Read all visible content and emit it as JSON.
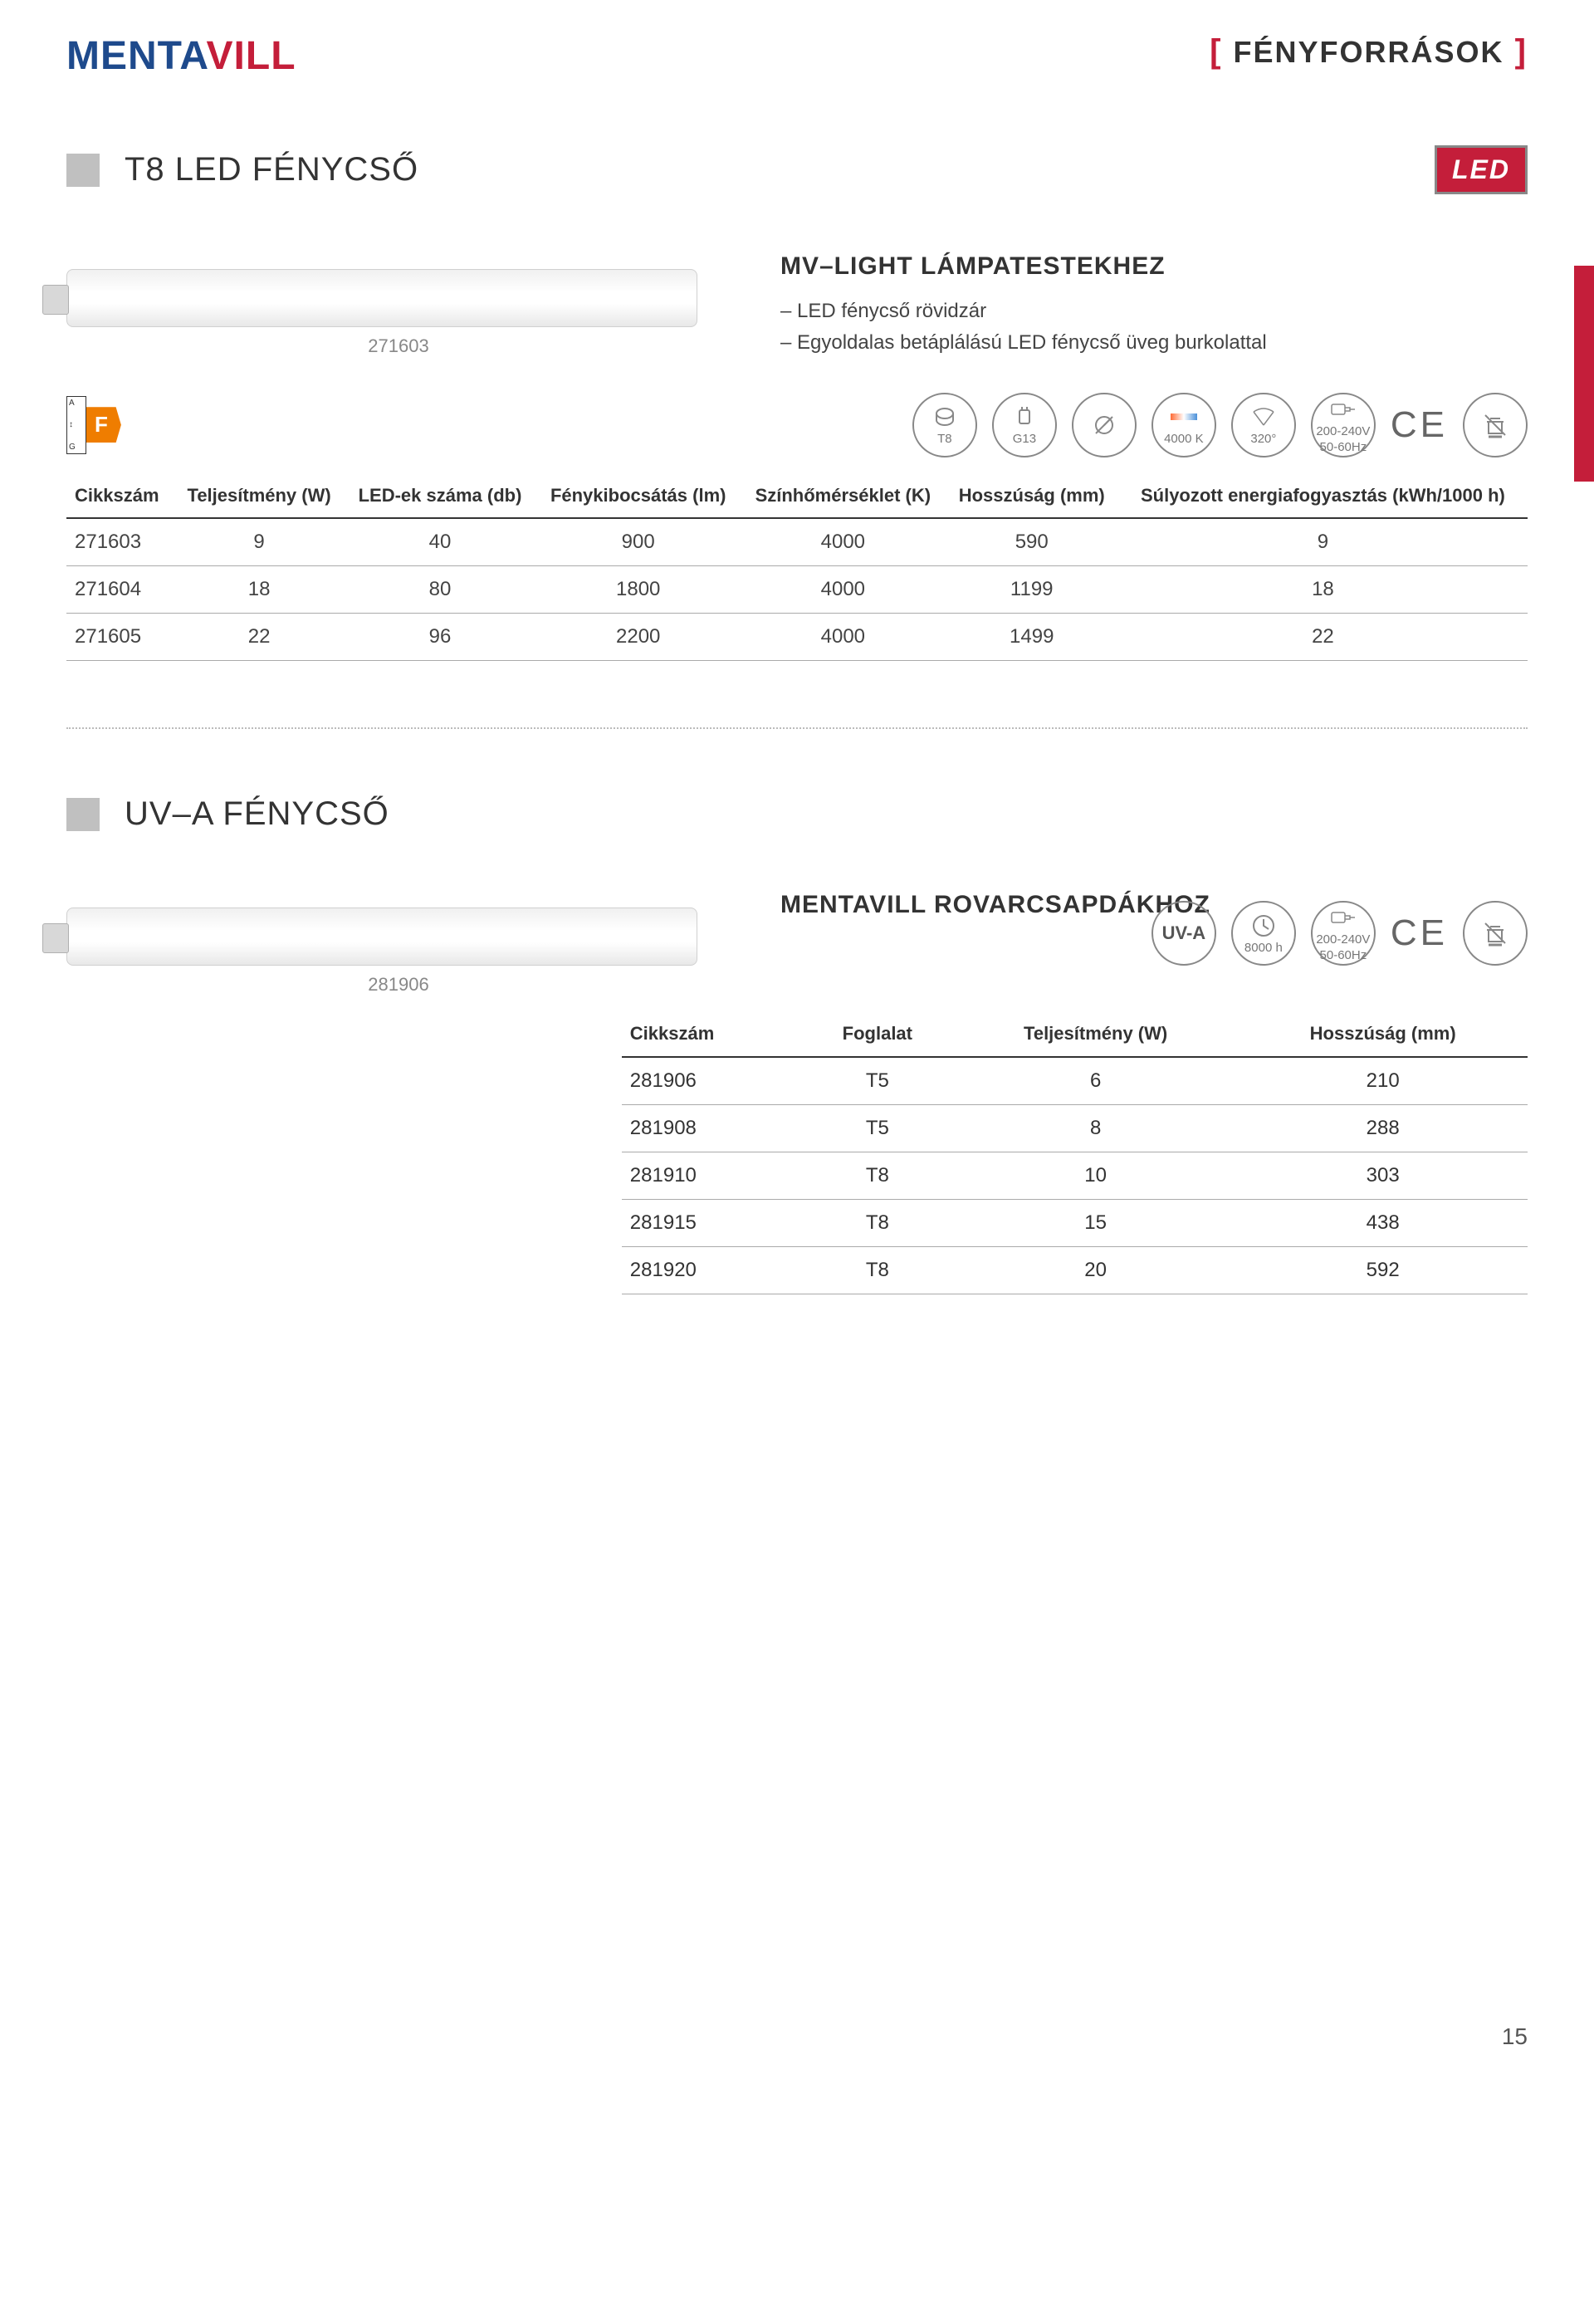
{
  "brand": {
    "part1": "MENTA",
    "part2": "VILL"
  },
  "category": "FÉNYFORRÁSOK",
  "page_number": "15",
  "section1": {
    "title": "T8 LED FÉNYCSŐ",
    "led_badge": "LED",
    "image_code": "271603",
    "desc_title": "MV–LIGHT LÁMPATESTEKHEZ",
    "desc_lines": [
      "– LED fénycső rövidzár",
      "– Egyoldalas betáplálású LED fénycső üveg burkolattal"
    ],
    "energy_class": "F",
    "energy_scale_top": "A",
    "energy_scale_bot": "G",
    "icons": {
      "socket_type": "T8",
      "base": "G13",
      "color_temp": "4000 K",
      "beam_angle": "320°",
      "voltage_line1": "200-240V",
      "voltage_line2": "50-60Hz",
      "ce": "CE"
    },
    "table": {
      "headers": [
        "Cikkszám",
        "Teljesítmény (W)",
        "LED-ek száma (db)",
        "Fénykibocsátás (lm)",
        "Színhőmérséklet (K)",
        "Hosszúság (mm)",
        "Súlyozott energiafogyasztás (kWh/1000 h)"
      ],
      "rows": [
        [
          "271603",
          "9",
          "40",
          "900",
          "4000",
          "590",
          "9"
        ],
        [
          "271604",
          "18",
          "80",
          "1800",
          "4000",
          "1199",
          "18"
        ],
        [
          "271605",
          "22",
          "96",
          "2200",
          "4000",
          "1499",
          "22"
        ]
      ]
    }
  },
  "section2": {
    "title": "UV–A FÉNYCSŐ",
    "image_code": "281906",
    "desc_title": "MENTAVILL ROVARCSAPDÁKHOZ",
    "icons": {
      "uva": "UV-A",
      "lifetime": "8000 h",
      "voltage_line1": "200-240V",
      "voltage_line2": "50-60Hz",
      "ce": "CE"
    },
    "table": {
      "headers": [
        "Cikkszám",
        "Foglalat",
        "Teljesítmény (W)",
        "Hosszúság (mm)"
      ],
      "rows": [
        [
          "281906",
          "T5",
          "6",
          "210"
        ],
        [
          "281908",
          "T5",
          "8",
          "288"
        ],
        [
          "281910",
          "T8",
          "10",
          "303"
        ],
        [
          "281915",
          "T8",
          "15",
          "438"
        ],
        [
          "281920",
          "T8",
          "20",
          "592"
        ]
      ]
    }
  }
}
